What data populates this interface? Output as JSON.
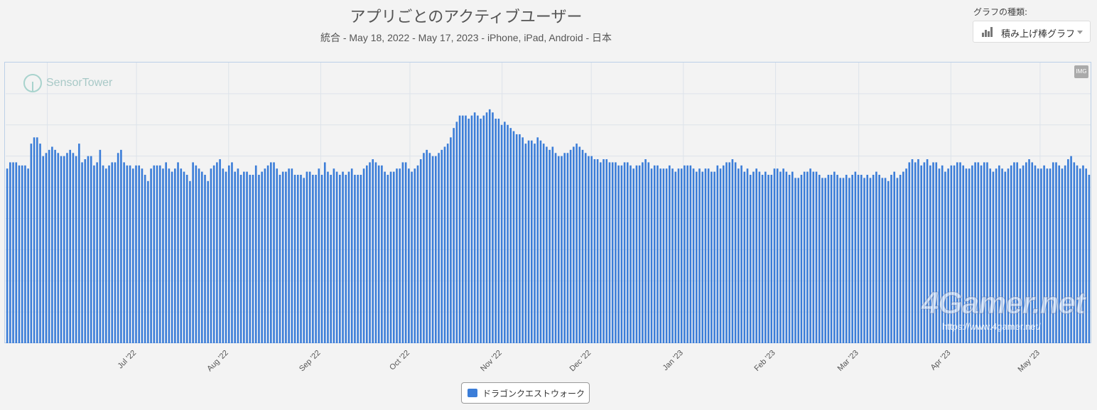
{
  "title": "アプリごとのアクティブユーザー",
  "subtitle": "統合 - May 18, 2022 - May 17, 2023 - iPhone, iPad, Android - 日本",
  "chart_type_control": {
    "label": "グラフの種類:",
    "value": "積み上げ棒グラフ"
  },
  "logo_text": "SensorTower",
  "export_badge": "IMG",
  "watermark": {
    "main": "4Gamer.net",
    "url": "https://www.4gamer.net/"
  },
  "colors": {
    "bar": "#3b7dd8",
    "background": "#f3f3f3",
    "grid": "#dde3ea",
    "border": "#bcd0e8"
  },
  "chart_data": {
    "type": "bar",
    "stacked": true,
    "grid": true,
    "legend_position": "bottom",
    "ylim": [
      0,
      9
    ],
    "x_start": "2022-05-18",
    "x_end": "2023-05-17",
    "tick_labels": [
      "Jul '22",
      "Aug '22",
      "Sep '22",
      "Oct '22",
      "Nov '22",
      "Dec '22",
      "Jan '23",
      "Feb '23",
      "Mar '23",
      "Apr '23",
      "May '23"
    ],
    "series": [
      {
        "name": "ドラゴンクエストウォーク",
        "values": [
          5.6,
          5.8,
          5.8,
          5.8,
          5.7,
          5.7,
          5.7,
          5.6,
          6.4,
          6.6,
          6.6,
          6.4,
          6.0,
          6.1,
          6.2,
          6.3,
          6.2,
          6.1,
          6.0,
          6.0,
          6.1,
          6.2,
          6.1,
          6.0,
          6.4,
          5.8,
          5.9,
          6.0,
          6.0,
          5.7,
          5.8,
          6.2,
          5.7,
          5.6,
          5.7,
          5.8,
          5.8,
          6.1,
          6.2,
          5.8,
          5.7,
          5.7,
          5.6,
          5.7,
          5.7,
          5.6,
          5.4,
          5.2,
          5.6,
          5.7,
          5.7,
          5.7,
          5.6,
          5.8,
          5.6,
          5.5,
          5.6,
          5.8,
          5.6,
          5.5,
          5.4,
          5.2,
          5.8,
          5.7,
          5.6,
          5.5,
          5.4,
          5.2,
          5.6,
          5.7,
          5.8,
          5.9,
          5.6,
          5.5,
          5.7,
          5.8,
          5.5,
          5.6,
          5.4,
          5.5,
          5.5,
          5.4,
          5.4,
          5.7,
          5.4,
          5.5,
          5.6,
          5.7,
          5.8,
          5.8,
          5.6,
          5.4,
          5.5,
          5.5,
          5.6,
          5.6,
          5.4,
          5.4,
          5.4,
          5.3,
          5.5,
          5.5,
          5.4,
          5.4,
          5.6,
          5.4,
          5.8,
          5.5,
          5.4,
          5.6,
          5.5,
          5.4,
          5.5,
          5.4,
          5.5,
          5.6,
          5.4,
          5.4,
          5.4,
          5.6,
          5.7,
          5.8,
          5.9,
          5.8,
          5.7,
          5.7,
          5.5,
          5.4,
          5.5,
          5.5,
          5.6,
          5.6,
          5.8,
          5.8,
          5.6,
          5.5,
          5.6,
          5.7,
          5.9,
          6.1,
          6.2,
          6.1,
          6.0,
          6.0,
          6.1,
          6.2,
          6.3,
          6.4,
          6.6,
          6.9,
          7.1,
          7.3,
          7.3,
          7.3,
          7.2,
          7.3,
          7.4,
          7.3,
          7.2,
          7.3,
          7.4,
          7.5,
          7.4,
          7.2,
          7.2,
          7.0,
          7.1,
          7.0,
          6.9,
          6.8,
          6.7,
          6.7,
          6.6,
          6.4,
          6.5,
          6.5,
          6.4,
          6.6,
          6.5,
          6.4,
          6.3,
          6.2,
          6.3,
          6.1,
          6.0,
          6.0,
          6.1,
          6.1,
          6.2,
          6.3,
          6.4,
          6.3,
          6.2,
          6.1,
          6.0,
          6.0,
          5.9,
          5.9,
          5.8,
          5.9,
          5.9,
          5.8,
          5.8,
          5.8,
          5.7,
          5.7,
          5.8,
          5.8,
          5.7,
          5.6,
          5.7,
          5.7,
          5.8,
          5.9,
          5.8,
          5.6,
          5.7,
          5.7,
          5.6,
          5.6,
          5.6,
          5.7,
          5.6,
          5.5,
          5.6,
          5.6,
          5.7,
          5.7,
          5.7,
          5.6,
          5.5,
          5.6,
          5.5,
          5.6,
          5.6,
          5.5,
          5.5,
          5.7,
          5.6,
          5.7,
          5.8,
          5.8,
          5.9,
          5.8,
          5.6,
          5.7,
          5.5,
          5.6,
          5.4,
          5.5,
          5.6,
          5.5,
          5.4,
          5.5,
          5.4,
          5.4,
          5.6,
          5.6,
          5.5,
          5.6,
          5.5,
          5.4,
          5.5,
          5.3,
          5.3,
          5.4,
          5.5,
          5.5,
          5.6,
          5.5,
          5.5,
          5.4,
          5.3,
          5.3,
          5.4,
          5.4,
          5.5,
          5.4,
          5.3,
          5.3,
          5.4,
          5.3,
          5.4,
          5.5,
          5.4,
          5.4,
          5.3,
          5.4,
          5.3,
          5.4,
          5.5,
          5.4,
          5.3,
          5.3,
          5.2,
          5.4,
          5.5,
          5.3,
          5.4,
          5.5,
          5.6,
          5.8,
          5.9,
          5.8,
          5.9,
          5.7,
          5.8,
          5.9,
          5.7,
          5.8,
          5.8,
          5.6,
          5.7,
          5.5,
          5.6,
          5.7,
          5.7,
          5.8,
          5.8,
          5.7,
          5.6,
          5.6,
          5.7,
          5.8,
          5.8,
          5.7,
          5.8,
          5.8,
          5.6,
          5.5,
          5.6,
          5.7,
          5.6,
          5.5,
          5.6,
          5.7,
          5.8,
          5.8,
          5.6,
          5.7,
          5.8,
          5.9,
          5.8,
          5.7,
          5.6,
          5.6,
          5.7,
          5.6,
          5.6,
          5.8,
          5.8,
          5.7,
          5.6,
          5.7,
          5.9,
          6.0,
          5.8,
          5.7,
          5.6,
          5.7,
          5.6,
          5.4
        ]
      }
    ]
  }
}
